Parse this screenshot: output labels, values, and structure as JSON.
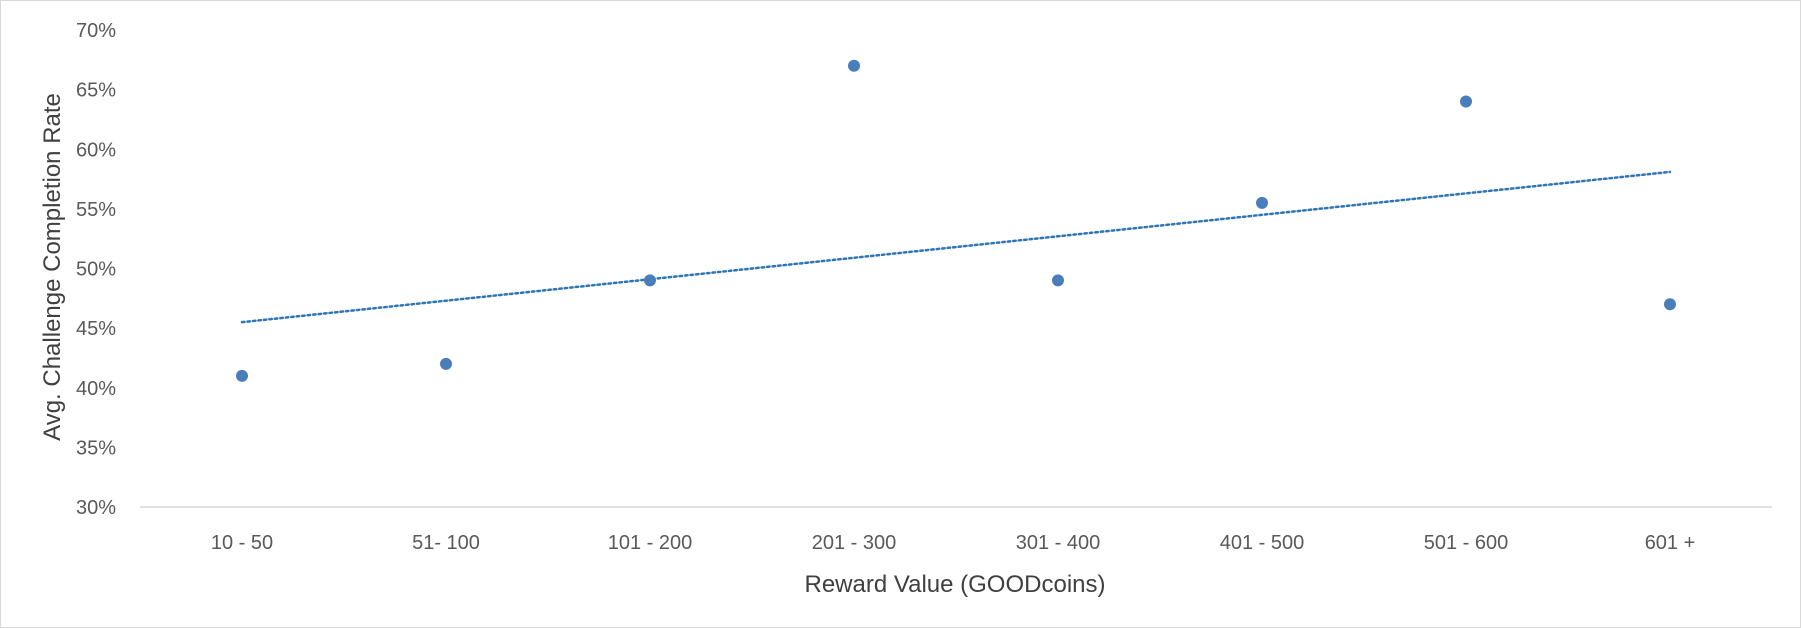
{
  "chart_data": {
    "type": "scatter",
    "title": "",
    "xlabel": "Reward Value (GOODcoins)",
    "ylabel": "Avg. Challenge Completion Rate",
    "x_tick_labels": [
      "10 - 50",
      "51- 100",
      "101 - 200",
      "201 - 300",
      "301 - 400",
      "401 - 500",
      "501 - 600",
      "601 +"
    ],
    "y_tick_labels": [
      "30%",
      "35%",
      "40%",
      "45%",
      "50%",
      "55%",
      "60%",
      "65%",
      "70%"
    ],
    "ylim": [
      0.3,
      0.7
    ],
    "xlim": [
      0,
      8
    ],
    "grid": false,
    "legend": "none",
    "series": [
      {
        "marker_color": "#4a7ebb",
        "x": [
          0.5,
          1.5,
          2.5,
          3.5,
          4.5,
          5.5,
          6.5,
          7.5
        ],
        "y": [
          0.41,
          0.42,
          0.49,
          0.67,
          0.49,
          0.555,
          0.64,
          0.47
        ]
      }
    ],
    "trendline": {
      "type": "linear",
      "style": "dotted",
      "color": "#2e75b6",
      "x": [
        0.5,
        7.5
      ],
      "y": [
        0.455,
        0.581
      ]
    }
  }
}
